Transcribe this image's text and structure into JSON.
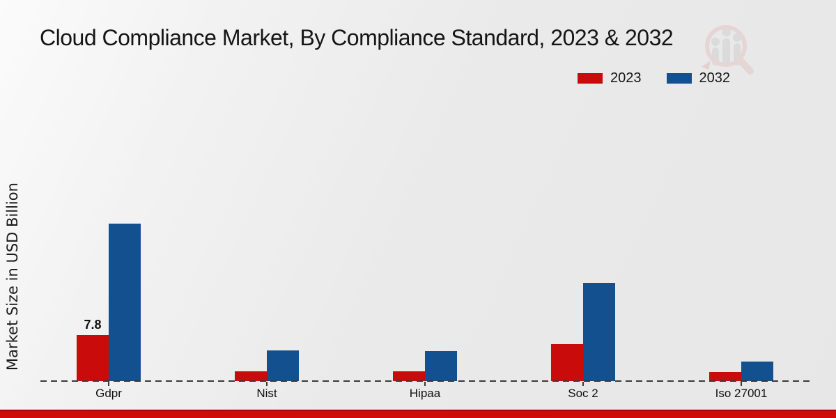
{
  "chart_data": {
    "type": "bar",
    "title": "Cloud Compliance Market, By Compliance Standard, 2023 & 2032",
    "xlabel": "",
    "ylabel": "Market Size in USD Billion",
    "categories": [
      "Gdpr",
      "Nist",
      "Hipaa",
      "Soc 2",
      "Iso 27001"
    ],
    "series": [
      {
        "name": "2023",
        "color": "#c90b0b",
        "values": [
          7.8,
          1.7,
          1.7,
          6.3,
          1.5
        ]
      },
      {
        "name": "2032",
        "color": "#12508f",
        "values": [
          26.7,
          5.2,
          5.1,
          16.7,
          3.3
        ]
      }
    ],
    "bar_labels": [
      {
        "series": "2023",
        "category": "Gdpr",
        "text": "7.8"
      }
    ],
    "ylim": [
      0,
      30
    ],
    "grid": false,
    "legend_position": "top-right",
    "baseline_style": "dashed",
    "axis_ticks_visible": false
  },
  "colors": {
    "series_2023": "#c90b0b",
    "series_2032": "#12508f",
    "footer_strip": "#d20a0a",
    "background": "#ebebeb",
    "watermark_pink": "#e6c6c6",
    "watermark_gray": "#d0d0d0"
  },
  "icons": {
    "watermark": "magnifier-people-logo-icon"
  }
}
